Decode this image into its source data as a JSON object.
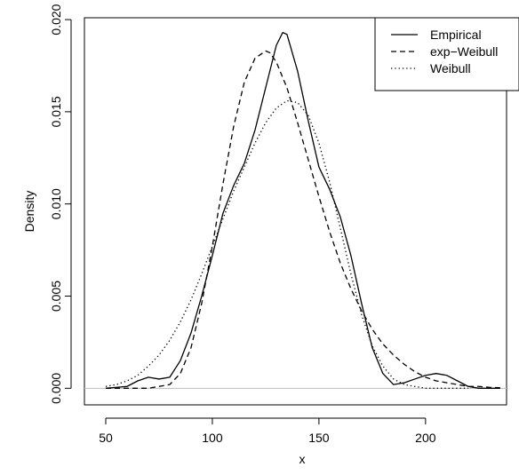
{
  "chart_data": {
    "type": "line",
    "title": "",
    "xlabel": "x",
    "ylabel": "Density",
    "xlim": [
      40,
      238
    ],
    "ylim": [
      -0.0009,
      0.0201
    ],
    "x_ticks": [
      50,
      100,
      150,
      200
    ],
    "y_ticks": [
      0.0,
      0.005,
      0.01,
      0.015,
      0.02
    ],
    "x_tick_labels": [
      "50",
      "100",
      "150",
      "200"
    ],
    "y_tick_labels": [
      "0.000",
      "0.005",
      "0.010",
      "0.015",
      "0.020"
    ],
    "baseline": 0,
    "baseline_color": "#bebebe",
    "legend_position": "top-right",
    "grid": false,
    "series": [
      {
        "name": "Empirical",
        "style": "solid",
        "color": "#000000",
        "x": [
          50,
          60,
          65,
          70,
          75,
          80,
          85,
          90,
          95,
          100,
          105,
          110,
          115,
          120,
          125,
          130,
          133,
          135,
          140,
          145,
          150,
          155,
          160,
          165,
          170,
          175,
          180,
          185,
          190,
          195,
          200,
          205,
          210,
          215,
          220,
          225,
          230,
          235
        ],
        "y": [
          0,
          0.0001,
          0.0004,
          0.0006,
          0.0005,
          0.0006,
          0.0015,
          0.003,
          0.005,
          0.0072,
          0.0095,
          0.011,
          0.0122,
          0.014,
          0.0163,
          0.0186,
          0.0193,
          0.0192,
          0.0172,
          0.0145,
          0.012,
          0.0108,
          0.0093,
          0.0072,
          0.0046,
          0.0022,
          0.0008,
          0.0002,
          0.0003,
          0.0005,
          0.0007,
          0.0008,
          0.0007,
          0.0004,
          0.0001,
          0,
          0,
          0
        ]
      },
      {
        "name": "exp−Weibull",
        "style": "dashed",
        "color": "#000000",
        "x": [
          50,
          60,
          70,
          80,
          85,
          90,
          95,
          100,
          105,
          110,
          115,
          120,
          125,
          127,
          130,
          135,
          140,
          145,
          150,
          155,
          160,
          165,
          170,
          175,
          180,
          185,
          190,
          195,
          200,
          205,
          210,
          215,
          220,
          225,
          230,
          235
        ],
        "y": [
          0,
          0,
          0,
          0.0002,
          0.0008,
          0.0022,
          0.0046,
          0.0077,
          0.0111,
          0.0142,
          0.0166,
          0.0179,
          0.0183,
          0.0182,
          0.0177,
          0.0163,
          0.0144,
          0.0124,
          0.0104,
          0.0085,
          0.0068,
          0.0054,
          0.0042,
          0.0032,
          0.0024,
          0.0018,
          0.0013,
          0.0009,
          0.0006,
          0.0004,
          0.0003,
          0.0002,
          0.0001,
          0.0001,
          5e-05,
          3e-05
        ]
      },
      {
        "name": "Weibull",
        "style": "dotted",
        "color": "#000000",
        "x": [
          50,
          55,
          60,
          65,
          70,
          75,
          80,
          85,
          90,
          95,
          100,
          105,
          110,
          115,
          120,
          125,
          130,
          135,
          140,
          145,
          150,
          155,
          160,
          165,
          170,
          175,
          180,
          185,
          190,
          195,
          200,
          205,
          210,
          215,
          220
        ],
        "y": [
          0.0001,
          0.0002,
          0.0004,
          0.0007,
          0.0012,
          0.0018,
          0.0026,
          0.0036,
          0.0048,
          0.0062,
          0.0077,
          0.0092,
          0.0107,
          0.012,
          0.0133,
          0.0144,
          0.0152,
          0.0156,
          0.0155,
          0.0148,
          0.0133,
          0.0112,
          0.0087,
          0.0062,
          0.004,
          0.0023,
          0.0012,
          0.0005,
          0.0002,
          0.0001,
          0,
          0,
          0,
          0,
          0
        ]
      }
    ]
  }
}
